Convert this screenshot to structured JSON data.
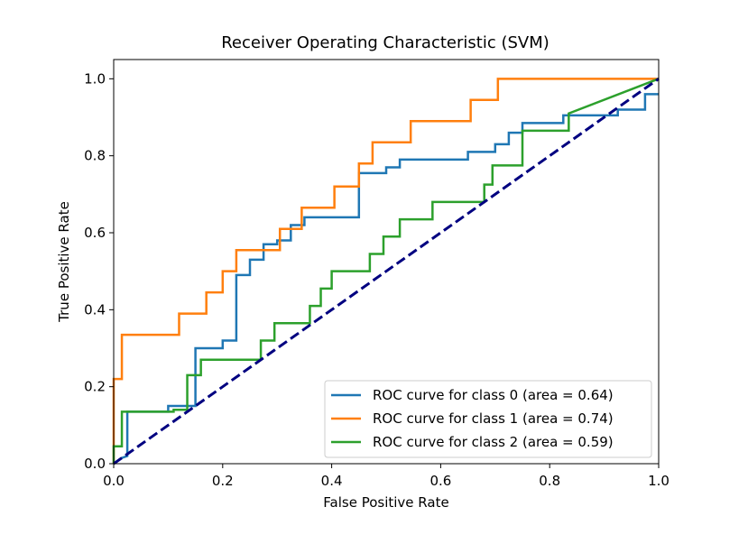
{
  "chart_data": {
    "type": "line",
    "title": "Receiver Operating Characteristic (SVM)",
    "xlabel": "False Positive Rate",
    "ylabel": "True Positive Rate",
    "xlim": [
      0.0,
      1.0
    ],
    "ylim": [
      0.0,
      1.05
    ],
    "xticks": [
      "0.0",
      "0.2",
      "0.4",
      "0.6",
      "0.8",
      "1.0"
    ],
    "yticks": [
      "0.0",
      "0.2",
      "0.4",
      "0.6",
      "0.8",
      "1.0"
    ],
    "legend_position": "lower right",
    "grid": false,
    "series": [
      {
        "name": "ROC curve for class 0 (area = 0.64)",
        "color": "#1f77b4",
        "x": [
          0.0,
          0.015,
          0.025,
          0.025,
          0.1,
          0.1,
          0.15,
          0.15,
          0.2,
          0.2,
          0.225,
          0.225,
          0.25,
          0.25,
          0.275,
          0.275,
          0.3,
          0.3,
          0.325,
          0.325,
          0.35,
          0.35,
          0.45,
          0.45,
          0.5,
          0.5,
          0.525,
          0.525,
          0.65,
          0.65,
          0.7,
          0.7,
          0.725,
          0.725,
          0.75,
          0.75,
          0.775,
          0.775,
          0.825,
          0.825,
          0.875,
          0.875,
          0.925,
          0.925,
          0.975,
          0.975,
          1.0
        ],
        "y": [
          0.0,
          0.015,
          0.02,
          0.135,
          0.135,
          0.15,
          0.15,
          0.3,
          0.3,
          0.32,
          0.32,
          0.49,
          0.49,
          0.53,
          0.53,
          0.57,
          0.57,
          0.58,
          0.58,
          0.62,
          0.62,
          0.64,
          0.64,
          0.755,
          0.755,
          0.77,
          0.77,
          0.79,
          0.79,
          0.81,
          0.81,
          0.83,
          0.83,
          0.86,
          0.86,
          0.885,
          0.885,
          0.885,
          0.885,
          0.905,
          0.905,
          0.905,
          0.905,
          0.92,
          0.92,
          0.96,
          0.96
        ]
      },
      {
        "name": "ROC curve for class 1 (area = 0.74)",
        "color": "#ff7f0e",
        "x": [
          0.0,
          0.0,
          0.015,
          0.015,
          0.12,
          0.12,
          0.17,
          0.17,
          0.2,
          0.2,
          0.225,
          0.225,
          0.27,
          0.27,
          0.305,
          0.305,
          0.325,
          0.325,
          0.345,
          0.345,
          0.405,
          0.405,
          0.45,
          0.45,
          0.475,
          0.475,
          0.5,
          0.5,
          0.545,
          0.545,
          0.655,
          0.655,
          0.705,
          0.705,
          1.0
        ],
        "y": [
          0.0,
          0.22,
          0.22,
          0.335,
          0.335,
          0.39,
          0.39,
          0.445,
          0.445,
          0.5,
          0.5,
          0.555,
          0.555,
          0.555,
          0.555,
          0.61,
          0.61,
          0.61,
          0.61,
          0.665,
          0.665,
          0.72,
          0.72,
          0.78,
          0.78,
          0.835,
          0.835,
          0.835,
          0.835,
          0.89,
          0.89,
          0.945,
          0.945,
          1.0,
          1.0
        ]
      },
      {
        "name": "ROC curve for class 2 (area = 0.59)",
        "color": "#2ca02c",
        "x": [
          0.0,
          0.0,
          0.015,
          0.015,
          0.11,
          0.11,
          0.135,
          0.135,
          0.16,
          0.16,
          0.21,
          0.21,
          0.27,
          0.27,
          0.295,
          0.295,
          0.36,
          0.36,
          0.38,
          0.38,
          0.4,
          0.4,
          0.47,
          0.47,
          0.495,
          0.495,
          0.525,
          0.525,
          0.585,
          0.585,
          0.68,
          0.68,
          0.695,
          0.695,
          0.75,
          0.75,
          0.835,
          0.835,
          1.0
        ],
        "y": [
          0.0,
          0.045,
          0.045,
          0.135,
          0.135,
          0.14,
          0.14,
          0.23,
          0.23,
          0.27,
          0.27,
          0.27,
          0.27,
          0.32,
          0.32,
          0.365,
          0.365,
          0.41,
          0.41,
          0.455,
          0.455,
          0.5,
          0.5,
          0.545,
          0.545,
          0.59,
          0.59,
          0.635,
          0.635,
          0.68,
          0.68,
          0.725,
          0.725,
          0.775,
          0.775,
          0.865,
          0.865,
          0.91,
          1.0
        ]
      }
    ],
    "reference_line": {
      "color": "#000080",
      "style": "dashed",
      "x": [
        0.0,
        1.0
      ],
      "y": [
        0.0,
        1.0
      ]
    }
  }
}
